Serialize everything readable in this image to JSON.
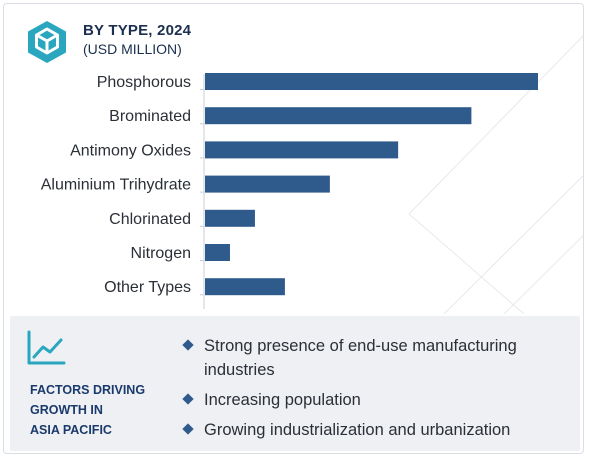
{
  "header": {
    "title": "BY TYPE, 2024",
    "subtitle": "(USD MILLION)",
    "logo_icon": "cube-icon"
  },
  "colors": {
    "bar": "#2f5b8c",
    "accent": "#2aa7bf",
    "title": "#1b2f4f"
  },
  "chart_data": {
    "type": "bar",
    "orientation": "horizontal",
    "categories": [
      "Phosphorous",
      "Brominated",
      "Antimony Oxides",
      "Aluminium Trihydrate",
      "Chlorinated",
      "Nitrogen",
      "Other Types"
    ],
    "values": [
      100,
      80,
      58,
      37.5,
      15,
      7.5,
      24
    ],
    "title": "BY TYPE, 2024",
    "subtitle": "(USD MILLION)",
    "xlabel": "",
    "ylabel": "",
    "grid": false,
    "value_axis_labels": false
  },
  "factors": {
    "icon": "trend-line-icon",
    "title_lines": [
      "FACTORS DRIVING",
      "GROWTH IN",
      "ASIA PACIFIC"
    ],
    "items": [
      "Strong presence of end-use manufacturing industries",
      "Increasing population",
      "Growing industrialization and urbanization"
    ]
  }
}
